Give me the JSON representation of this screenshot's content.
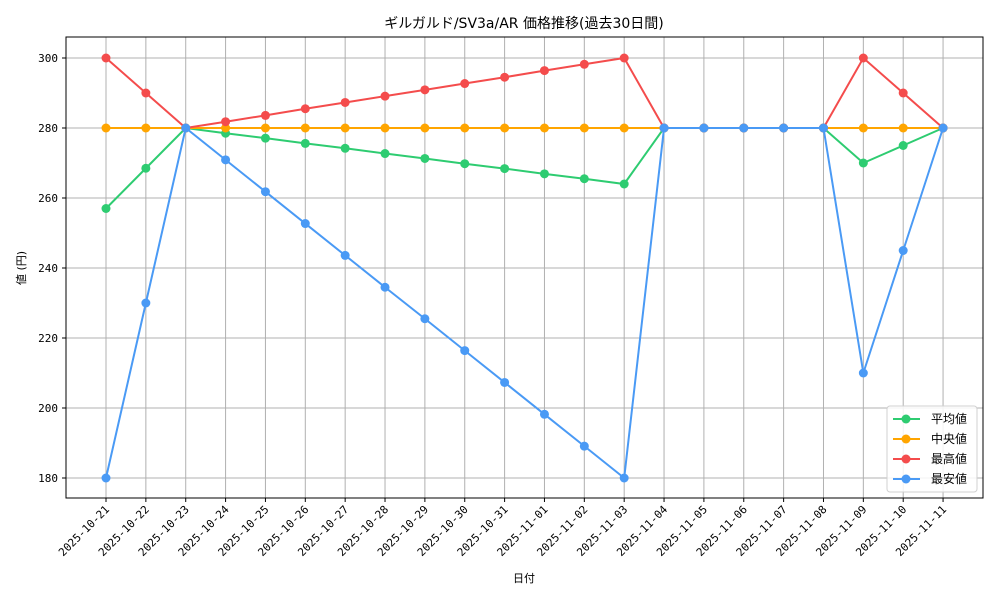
{
  "chart_data": {
    "type": "line",
    "title": "ギルガルド/SV3a/AR 価格推移(過去30日間)",
    "xlabel": "日付",
    "ylabel": "値 (円)",
    "ylim": [
      174,
      306
    ],
    "yticks": [
      180,
      200,
      220,
      240,
      260,
      280,
      300
    ],
    "grid": true,
    "legend_position": "lower right",
    "categories": [
      "2025-10-21",
      "2025-10-22",
      "2025-10-23",
      "2025-10-24",
      "2025-10-25",
      "2025-10-26",
      "2025-10-27",
      "2025-10-28",
      "2025-10-29",
      "2025-10-30",
      "2025-10-31",
      "2025-11-01",
      "2025-11-02",
      "2025-11-03",
      "2025-11-04",
      "2025-11-05",
      "2025-11-06",
      "2025-11-07",
      "2025-11-08",
      "2025-11-09",
      "2025-11-10",
      "2025-11-11"
    ],
    "series": [
      {
        "name": "平均値",
        "color": "#2ecc71",
        "values": [
          257,
          268.5,
          280,
          278.5,
          277.1,
          275.6,
          274.2,
          272.7,
          271.3,
          269.8,
          268.4,
          266.9,
          265.5,
          264,
          280,
          280,
          280,
          280,
          280,
          270,
          275,
          280
        ]
      },
      {
        "name": "中央値",
        "color": "#ffa500",
        "values": [
          280,
          280,
          280,
          280,
          280,
          280,
          280,
          280,
          280,
          280,
          280,
          280,
          280,
          280,
          280,
          280,
          280,
          280,
          280,
          280,
          280,
          280
        ]
      },
      {
        "name": "最高値",
        "color": "#f44c4c",
        "values": [
          300,
          290,
          280,
          281.8,
          283.6,
          285.5,
          287.3,
          289.1,
          290.9,
          292.7,
          294.5,
          296.4,
          298.2,
          300,
          280,
          280,
          280,
          280,
          280,
          300,
          290,
          280
        ]
      },
      {
        "name": "最安値",
        "color": "#4a9af5",
        "values": [
          180,
          230,
          280,
          270.9,
          261.8,
          252.7,
          243.6,
          234.5,
          225.5,
          216.4,
          207.3,
          198.2,
          189.1,
          180,
          280,
          280,
          280,
          280,
          280,
          210,
          245,
          280
        ]
      }
    ]
  }
}
